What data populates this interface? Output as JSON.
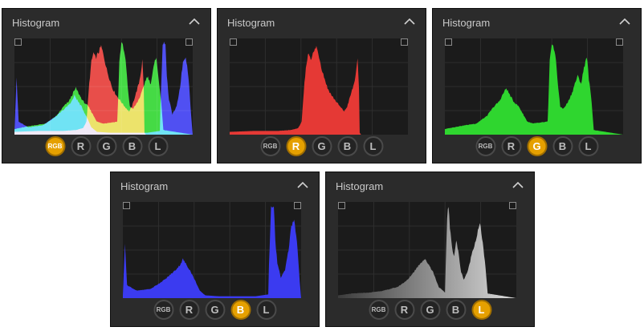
{
  "colors": {
    "panel_bg": "#2b2b2b",
    "plot_bg": "#1b1b1b",
    "grid": "#2e2e2e",
    "active_accent": "#e5a000",
    "red": "#e53935",
    "green": "#2fd62f",
    "blue": "#3b3bf0",
    "yellow": "#f5f54a",
    "cyan": "#7ff5ff",
    "magenta": "#ff5cff",
    "luminance_light": "#dcdcdc",
    "luminance_dark": "#3c3c3c"
  },
  "panels": [
    {
      "title": "Histogram",
      "mode": "rgb",
      "buttons": [
        "RGB",
        "R",
        "G",
        "B",
        "L"
      ],
      "active": "RGB",
      "collapse_icon": "chevron-up-icon"
    },
    {
      "title": "Histogram",
      "mode": "r",
      "buttons": [
        "RGB",
        "R",
        "G",
        "B",
        "L"
      ],
      "active": "R",
      "collapse_icon": "chevron-up-icon"
    },
    {
      "title": "Histogram",
      "mode": "g",
      "buttons": [
        "RGB",
        "R",
        "G",
        "B",
        "L"
      ],
      "active": "G",
      "collapse_icon": "chevron-up-icon"
    },
    {
      "title": "Histogram",
      "mode": "b",
      "buttons": [
        "RGB",
        "R",
        "G",
        "B",
        "L"
      ],
      "active": "B",
      "collapse_icon": "chevron-up-icon"
    },
    {
      "title": "Histogram",
      "mode": "l",
      "buttons": [
        "RGB",
        "R",
        "G",
        "B",
        "L"
      ],
      "active": "L",
      "collapse_icon": "chevron-up-icon"
    }
  ],
  "chart_data": {
    "type": "area",
    "x_range": [
      0,
      255
    ],
    "y_range": [
      0,
      1
    ],
    "grid": true,
    "series": [
      {
        "name": "R",
        "color": "#e53935",
        "points": [
          [
            0,
            0.03
          ],
          [
            35,
            0.04
          ],
          [
            70,
            0.04
          ],
          [
            88,
            0.05
          ],
          [
            98,
            0.07
          ],
          [
            103,
            0.14
          ],
          [
            107,
            0.55
          ],
          [
            110,
            0.78
          ],
          [
            113,
            0.88
          ],
          [
            116,
            0.82
          ],
          [
            120,
            0.88
          ],
          [
            124,
            0.95
          ],
          [
            128,
            0.84
          ],
          [
            132,
            0.7
          ],
          [
            136,
            0.6
          ],
          [
            140,
            0.5
          ],
          [
            146,
            0.42
          ],
          [
            152,
            0.36
          ],
          [
            158,
            0.3
          ],
          [
            164,
            0.25
          ],
          [
            168,
            0.3
          ],
          [
            174,
            0.45
          ],
          [
            178,
            0.55
          ],
          [
            181,
            0.68
          ],
          [
            183,
            0.8
          ],
          [
            185,
            0.5
          ],
          [
            186,
            0.02
          ],
          [
            188,
            0.0
          ],
          [
            255,
            0.0
          ]
        ]
      },
      {
        "name": "G",
        "color": "#2fd62f",
        "points": [
          [
            0,
            0.06
          ],
          [
            20,
            0.09
          ],
          [
            45,
            0.12
          ],
          [
            60,
            0.2
          ],
          [
            70,
            0.3
          ],
          [
            78,
            0.36
          ],
          [
            84,
            0.45
          ],
          [
            88,
            0.5
          ],
          [
            92,
            0.44
          ],
          [
            98,
            0.36
          ],
          [
            106,
            0.3
          ],
          [
            112,
            0.22
          ],
          [
            118,
            0.14
          ],
          [
            126,
            0.12
          ],
          [
            138,
            0.13
          ],
          [
            147,
            0.14
          ],
          [
            148,
            0.32
          ],
          [
            150,
            0.78
          ],
          [
            153,
            1.0
          ],
          [
            156,
            0.92
          ],
          [
            159,
            0.8
          ],
          [
            162,
            0.52
          ],
          [
            165,
            0.3
          ],
          [
            170,
            0.28
          ],
          [
            176,
            0.35
          ],
          [
            182,
            0.45
          ],
          [
            186,
            0.55
          ],
          [
            190,
            0.63
          ],
          [
            195,
            0.55
          ],
          [
            199,
            0.72
          ],
          [
            203,
            0.85
          ],
          [
            206,
            0.6
          ],
          [
            210,
            0.35
          ],
          [
            213,
            0.05
          ],
          [
            255,
            0.0
          ]
        ]
      },
      {
        "name": "B",
        "color": "#3b3bf0",
        "points": [
          [
            0,
            0.03
          ],
          [
            3,
            0.6
          ],
          [
            6,
            0.14
          ],
          [
            20,
            0.08
          ],
          [
            40,
            0.1
          ],
          [
            60,
            0.2
          ],
          [
            75,
            0.3
          ],
          [
            82,
            0.36
          ],
          [
            86,
            0.42
          ],
          [
            90,
            0.37
          ],
          [
            96,
            0.3
          ],
          [
            104,
            0.18
          ],
          [
            110,
            0.08
          ],
          [
            118,
            0.03
          ],
          [
            138,
            0.02
          ],
          [
            165,
            0.02
          ],
          [
            190,
            0.02
          ],
          [
            208,
            0.04
          ],
          [
            209,
            0.35
          ],
          [
            212,
            0.98
          ],
          [
            216,
            1.0
          ],
          [
            218,
            0.62
          ],
          [
            221,
            0.38
          ],
          [
            226,
            0.22
          ],
          [
            232,
            0.3
          ],
          [
            237,
            0.52
          ],
          [
            241,
            0.78
          ],
          [
            245,
            0.85
          ],
          [
            249,
            0.62
          ],
          [
            253,
            0.18
          ],
          [
            255,
            0.0
          ]
        ]
      },
      {
        "name": "L",
        "color": "#dcdcdc",
        "points": [
          [
            0,
            0.03
          ],
          [
            20,
            0.05
          ],
          [
            45,
            0.06
          ],
          [
            65,
            0.08
          ],
          [
            85,
            0.12
          ],
          [
            100,
            0.2
          ],
          [
            110,
            0.3
          ],
          [
            118,
            0.38
          ],
          [
            124,
            0.42
          ],
          [
            130,
            0.36
          ],
          [
            136,
            0.28
          ],
          [
            144,
            0.12
          ],
          [
            150,
            0.08
          ],
          [
            153,
            0.06
          ],
          [
            154,
            0.35
          ],
          [
            156,
            0.88
          ],
          [
            158,
            1.0
          ],
          [
            160,
            0.75
          ],
          [
            163,
            0.55
          ],
          [
            166,
            0.45
          ],
          [
            169,
            0.62
          ],
          [
            172,
            0.5
          ],
          [
            176,
            0.28
          ],
          [
            180,
            0.2
          ],
          [
            186,
            0.3
          ],
          [
            192,
            0.5
          ],
          [
            197,
            0.62
          ],
          [
            200,
            0.72
          ],
          [
            203,
            0.8
          ],
          [
            207,
            0.6
          ],
          [
            211,
            0.32
          ],
          [
            214,
            0.05
          ],
          [
            255,
            0.0
          ]
        ]
      }
    ]
  }
}
